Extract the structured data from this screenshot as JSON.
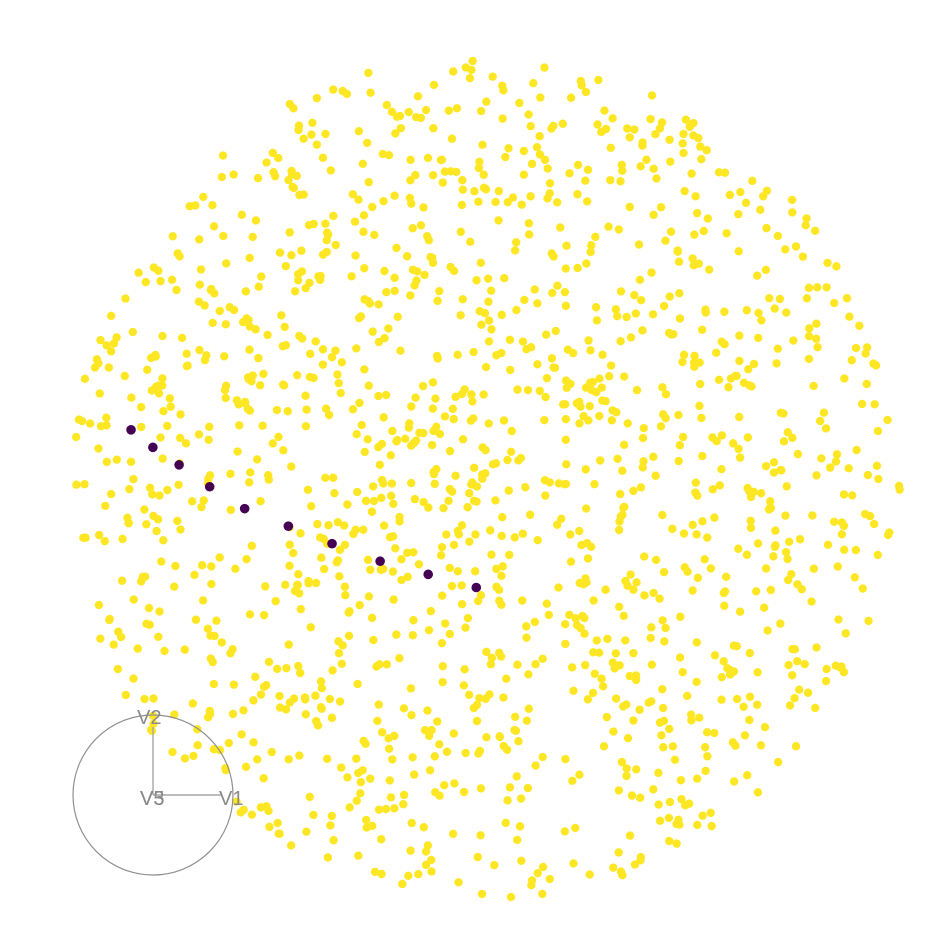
{
  "chart_data": {
    "type": "scatter",
    "title": "",
    "xlabel": "",
    "ylabel": "",
    "grid": false,
    "xlim": [
      -1,
      1
    ],
    "ylim": [
      -1,
      1
    ],
    "point_colors": {
      "background": "#fde725",
      "highlight": "#440154"
    },
    "series": [
      {
        "name": "",
        "color": "#440154",
        "x": [
          -0.81,
          -0.76,
          -0.7,
          -0.63,
          -0.55,
          -0.45,
          -0.35,
          -0.24,
          -0.13,
          -0.02
        ],
        "y": [
          0.11,
          0.07,
          0.03,
          -0.02,
          -0.07,
          -0.11,
          -0.15,
          -0.19,
          -0.22,
          -0.25
        ]
      }
    ],
    "background_points": {
      "count": 1500,
      "shape": "circular cloud"
    },
    "axis_guide": {
      "labels": [
        "V2",
        "V1",
        "V3",
        "V5"
      ],
      "stroke": "#8f8f8f"
    }
  }
}
